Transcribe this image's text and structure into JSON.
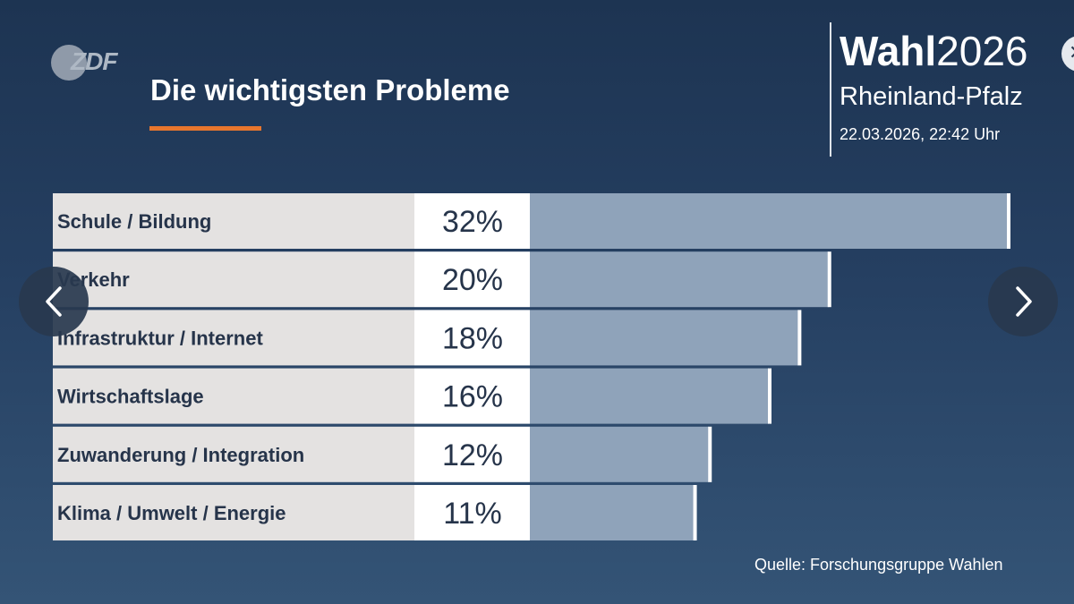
{
  "header": {
    "logo": "ZDF",
    "title": "Die wichtigsten Probleme"
  },
  "brand": {
    "title_bold": "Wahl",
    "title_light": "2026",
    "region": "Rheinland-Pfalz",
    "datetime": "22.03.2026, 22:42 Uhr"
  },
  "chart_data": {
    "type": "bar",
    "orientation": "horizontal",
    "title": "Die wichtigsten Probleme",
    "categories": [
      "Schule / Bildung",
      "Verkehr",
      "Infrastruktur / Internet",
      "Wirtschaftslage",
      "Zuwanderung / Integration",
      "Klima / Umwelt / Energie"
    ],
    "values": [
      32,
      20,
      18,
      16,
      12,
      11
    ],
    "value_labels": [
      "32%",
      "20%",
      "18%",
      "16%",
      "12%",
      "11%"
    ],
    "unit": "%",
    "xlim": [
      0,
      32
    ],
    "colors": {
      "label_bg": "#e4e2e1",
      "value_bg": "#ffffff",
      "bar": "#8fa3ba",
      "bar_end": "#ffffff",
      "text": "#26344a"
    }
  },
  "footer": {
    "source": "Quelle: Forschungsgruppe Wahlen"
  },
  "navigation": {
    "prev_icon": "chevron-left-icon",
    "next_icon": "chevron-right-icon",
    "close_icon": "close-icon"
  }
}
